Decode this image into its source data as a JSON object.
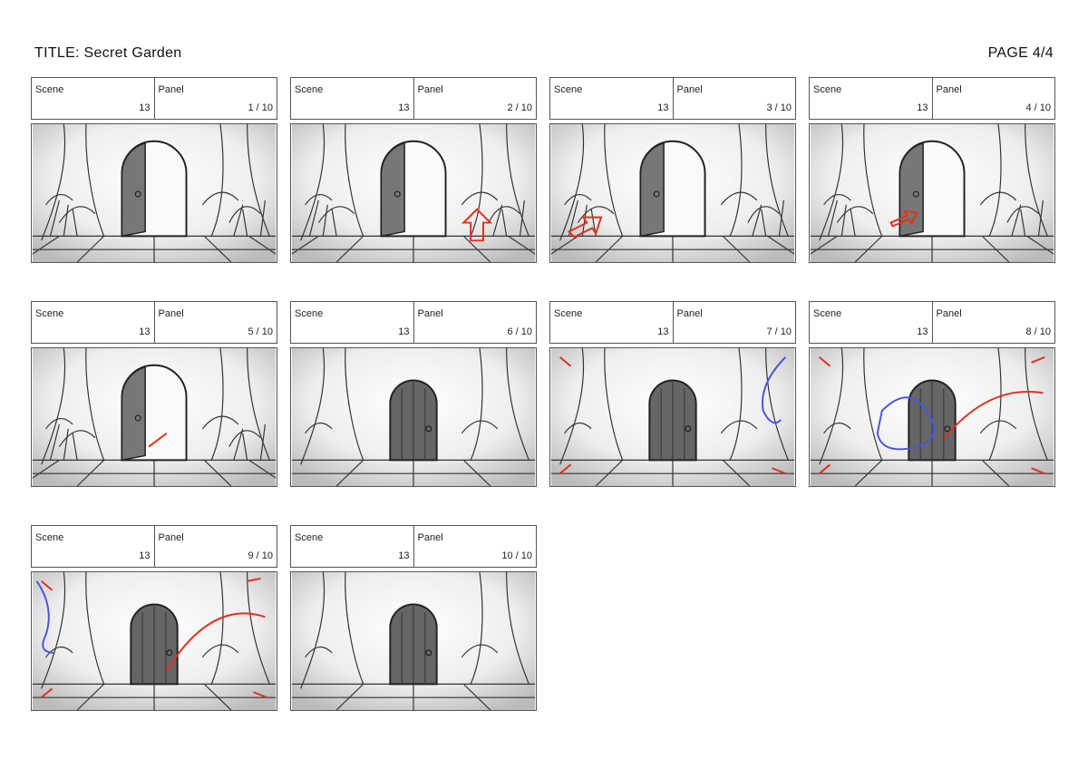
{
  "header": {
    "title": "TITLE:  Secret Garden",
    "page": "PAGE 4/4"
  },
  "labels": {
    "scene": "Scene",
    "panel": "Panel"
  },
  "panels": [
    {
      "scene": "13",
      "panel": "1 / 10"
    },
    {
      "scene": "13",
      "panel": "2 / 10"
    },
    {
      "scene": "13",
      "panel": "3 / 10"
    },
    {
      "scene": "13",
      "panel": "4 / 10"
    },
    {
      "scene": "13",
      "panel": "5 / 10"
    },
    {
      "scene": "13",
      "panel": "6 / 10"
    },
    {
      "scene": "13",
      "panel": "7 / 10"
    },
    {
      "scene": "13",
      "panel": "8 / 10"
    },
    {
      "scene": "13",
      "panel": "9 / 10"
    },
    {
      "scene": "13",
      "panel": "10 / 10"
    }
  ]
}
